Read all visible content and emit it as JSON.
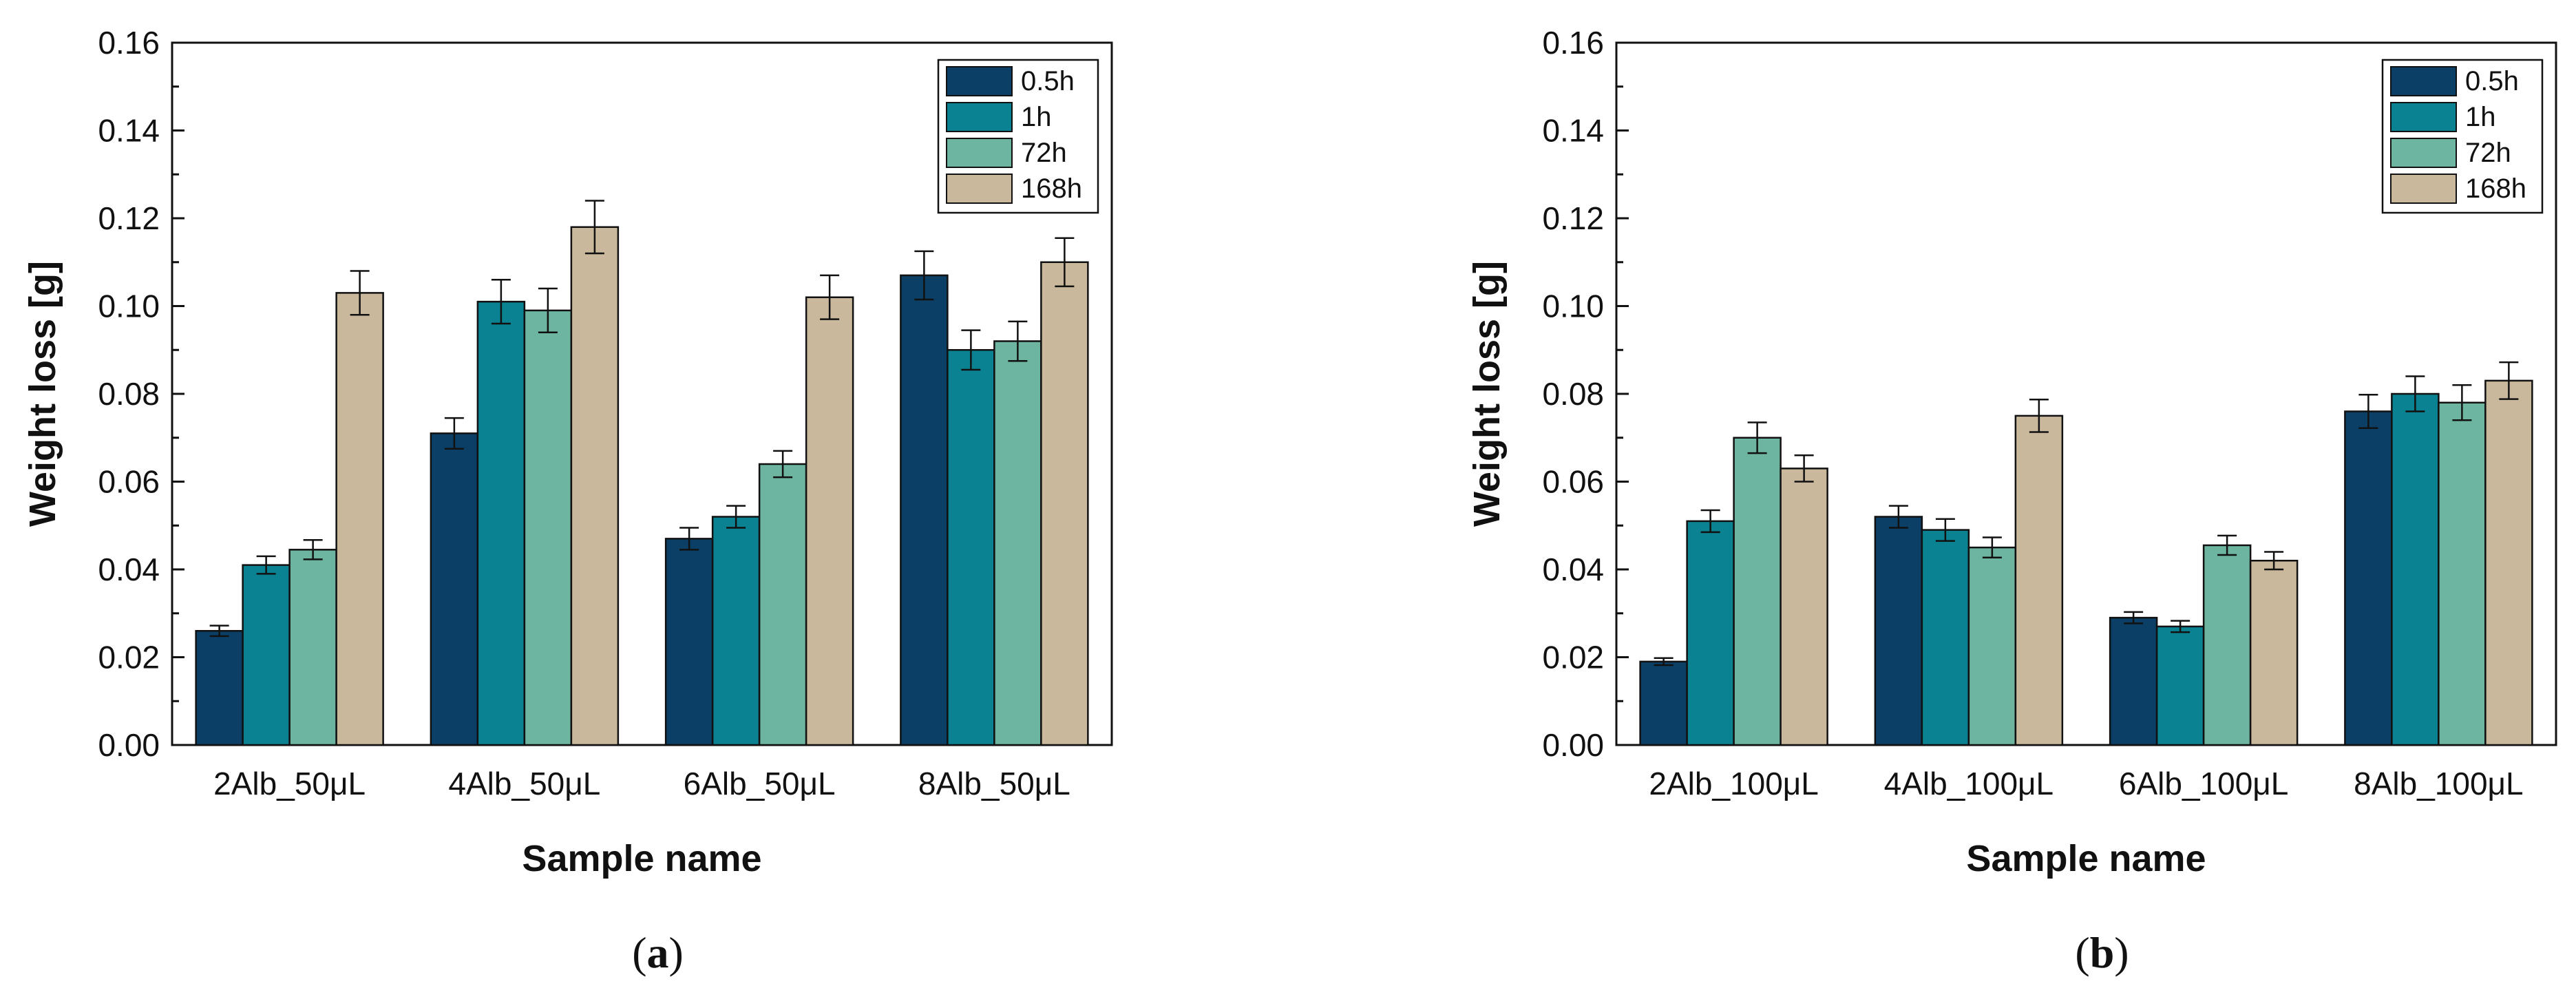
{
  "chart_data": [
    {
      "panel_label_parts": [
        "(",
        "a",
        ")"
      ],
      "type": "bar",
      "title": "",
      "xlabel": "Sample name",
      "ylabel": "Weight loss [g]",
      "ylim": [
        0,
        0.16
      ],
      "yticks": [
        "0.00",
        "0.02",
        "0.04",
        "0.06",
        "0.08",
        "0.10",
        "0.12",
        "0.14",
        "0.16"
      ],
      "categories": [
        "2Alb_50μL",
        "4Alb_50μL",
        "6Alb_50μL",
        "8Alb_50μL"
      ],
      "legend_position": "top-right",
      "series": [
        {
          "name": "0.5h",
          "color": "#0b3f66",
          "values": [
            0.026,
            0.071,
            0.047,
            0.107
          ],
          "errors": [
            0.0012,
            0.0035,
            0.0025,
            0.0055
          ]
        },
        {
          "name": "1h",
          "color": "#0b8291",
          "values": [
            0.041,
            0.101,
            0.052,
            0.09
          ],
          "errors": [
            0.002,
            0.005,
            0.0025,
            0.0045
          ]
        },
        {
          "name": "72h",
          "color": "#6db5a0",
          "values": [
            0.0445,
            0.099,
            0.064,
            0.092
          ],
          "errors": [
            0.0022,
            0.005,
            0.003,
            0.0045
          ]
        },
        {
          "name": "168h",
          "color": "#c9b89b",
          "values": [
            0.103,
            0.118,
            0.102,
            0.11
          ],
          "errors": [
            0.005,
            0.006,
            0.005,
            0.0055
          ]
        }
      ]
    },
    {
      "panel_label_parts": [
        "(",
        "b",
        ")"
      ],
      "type": "bar",
      "title": "",
      "xlabel": "Sample name",
      "ylabel": "Weight loss [g]",
      "ylim": [
        0,
        0.16
      ],
      "yticks": [
        "0.00",
        "0.02",
        "0.04",
        "0.06",
        "0.08",
        "0.10",
        "0.12",
        "0.14",
        "0.16"
      ],
      "categories": [
        "2Alb_100μL",
        "4Alb_100μL",
        "6Alb_100μL",
        "8Alb_100μL"
      ],
      "legend_position": "top-right",
      "series": [
        {
          "name": "0.5h",
          "color": "#0b3f66",
          "values": [
            0.019,
            0.052,
            0.029,
            0.076
          ],
          "errors": [
            0.0008,
            0.0025,
            0.0013,
            0.0038
          ]
        },
        {
          "name": "1h",
          "color": "#0b8291",
          "values": [
            0.051,
            0.049,
            0.027,
            0.08
          ],
          "errors": [
            0.0025,
            0.0025,
            0.0013,
            0.004
          ]
        },
        {
          "name": "72h",
          "color": "#6db5a0",
          "values": [
            0.07,
            0.045,
            0.0455,
            0.078
          ],
          "errors": [
            0.0035,
            0.0023,
            0.0022,
            0.004
          ]
        },
        {
          "name": "168h",
          "color": "#c9b89b",
          "values": [
            0.063,
            0.075,
            0.042,
            0.083
          ],
          "errors": [
            0.003,
            0.0037,
            0.002,
            0.0042
          ]
        }
      ]
    }
  ]
}
